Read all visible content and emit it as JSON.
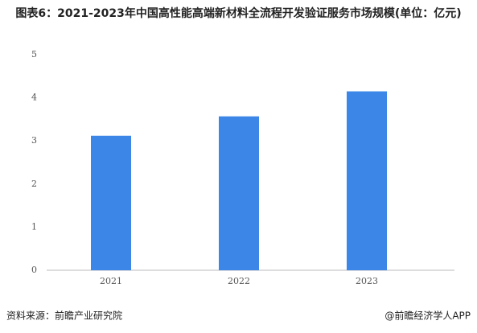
{
  "chart_data": {
    "type": "bar",
    "title": "图表6：2021-2023年中国高性能高端新材料全流程开发验证服务市场规模(单位：亿元)",
    "categories": [
      "2021",
      "2022",
      "2023"
    ],
    "values": [
      3.12,
      3.57,
      4.15
    ],
    "color": "#3b86e6",
    "ylim": [
      0,
      5
    ],
    "yticks": [
      0,
      1,
      2,
      3,
      4,
      5
    ],
    "grid": false,
    "source": "资料来源：前瞻产业研究院",
    "credit": "@前瞻经济学人APP"
  }
}
